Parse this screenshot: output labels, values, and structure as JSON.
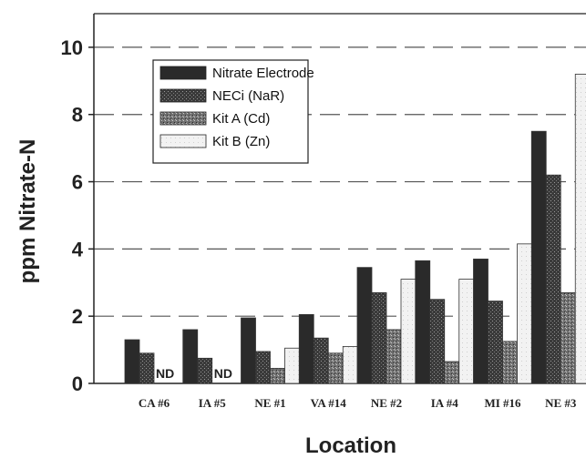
{
  "chart_data": {
    "type": "bar",
    "xlabel": "Location",
    "ylabel": "ppm Nitrate-N",
    "ylim": [
      0,
      11
    ],
    "yticks": [
      0,
      2,
      4,
      6,
      8,
      10
    ],
    "grid": "horizontal-dashed",
    "legend_position": "top-left",
    "categories": [
      "CA #6",
      "IA #5",
      "NE #1",
      "VA #14",
      "NE #2",
      "IA #4",
      "MI #16",
      "NE #3"
    ],
    "series": [
      {
        "name": "Nitrate Electrode",
        "values": [
          1.3,
          1.6,
          1.95,
          2.05,
          3.45,
          3.65,
          3.7,
          7.5
        ],
        "color": "#2a2a2a",
        "pattern": "solid"
      },
      {
        "name": "NECi (NaR)",
        "values": [
          0.9,
          0.75,
          0.95,
          1.35,
          2.7,
          2.5,
          2.45,
          6.2
        ],
        "color": "#3c3c3c",
        "pattern": "speckle-dark"
      },
      {
        "name": "Kit A (Cd)",
        "values": [
          null,
          null,
          0.45,
          0.9,
          1.6,
          0.65,
          1.25,
          2.7
        ],
        "color": "#6a6a6a",
        "pattern": "speckle-mid"
      },
      {
        "name": "Kit B (Zn)",
        "values": [
          null,
          null,
          1.05,
          1.1,
          3.1,
          3.1,
          4.15,
          9.2
        ],
        "color": "#eeeeee",
        "pattern": "light"
      }
    ],
    "annotations": [
      {
        "category": "CA #6",
        "series": "Kit A (Cd)",
        "text": "ND"
      },
      {
        "category": "IA #5",
        "series": "Kit A (Cd)",
        "text": "ND"
      }
    ]
  }
}
